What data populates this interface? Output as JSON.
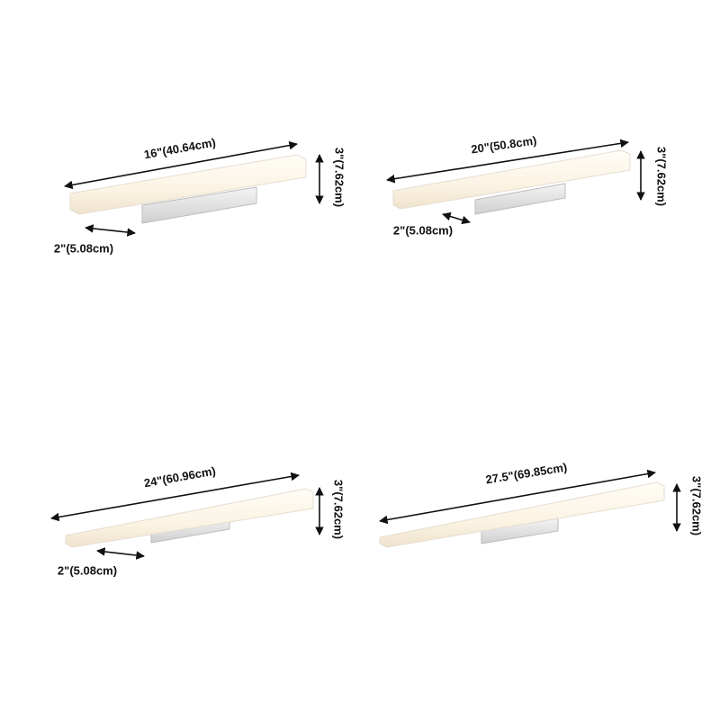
{
  "panels": [
    {
      "length": "16\"(40.64cm)",
      "height": "3\"(7.62cm)",
      "depth": "2\"(5.08cm)"
    },
    {
      "length": "20\"(50.8cm)",
      "height": "3\"(7.62cm)",
      "depth": "2\"(5.08cm)"
    },
    {
      "length": "24\"(60.96cm)",
      "height": "3\"(7.62cm)",
      "depth": "2\"(5.08cm)"
    },
    {
      "length": "27.5\"(69.85cm)",
      "height": "3\"(7.62cm)"
    }
  ]
}
